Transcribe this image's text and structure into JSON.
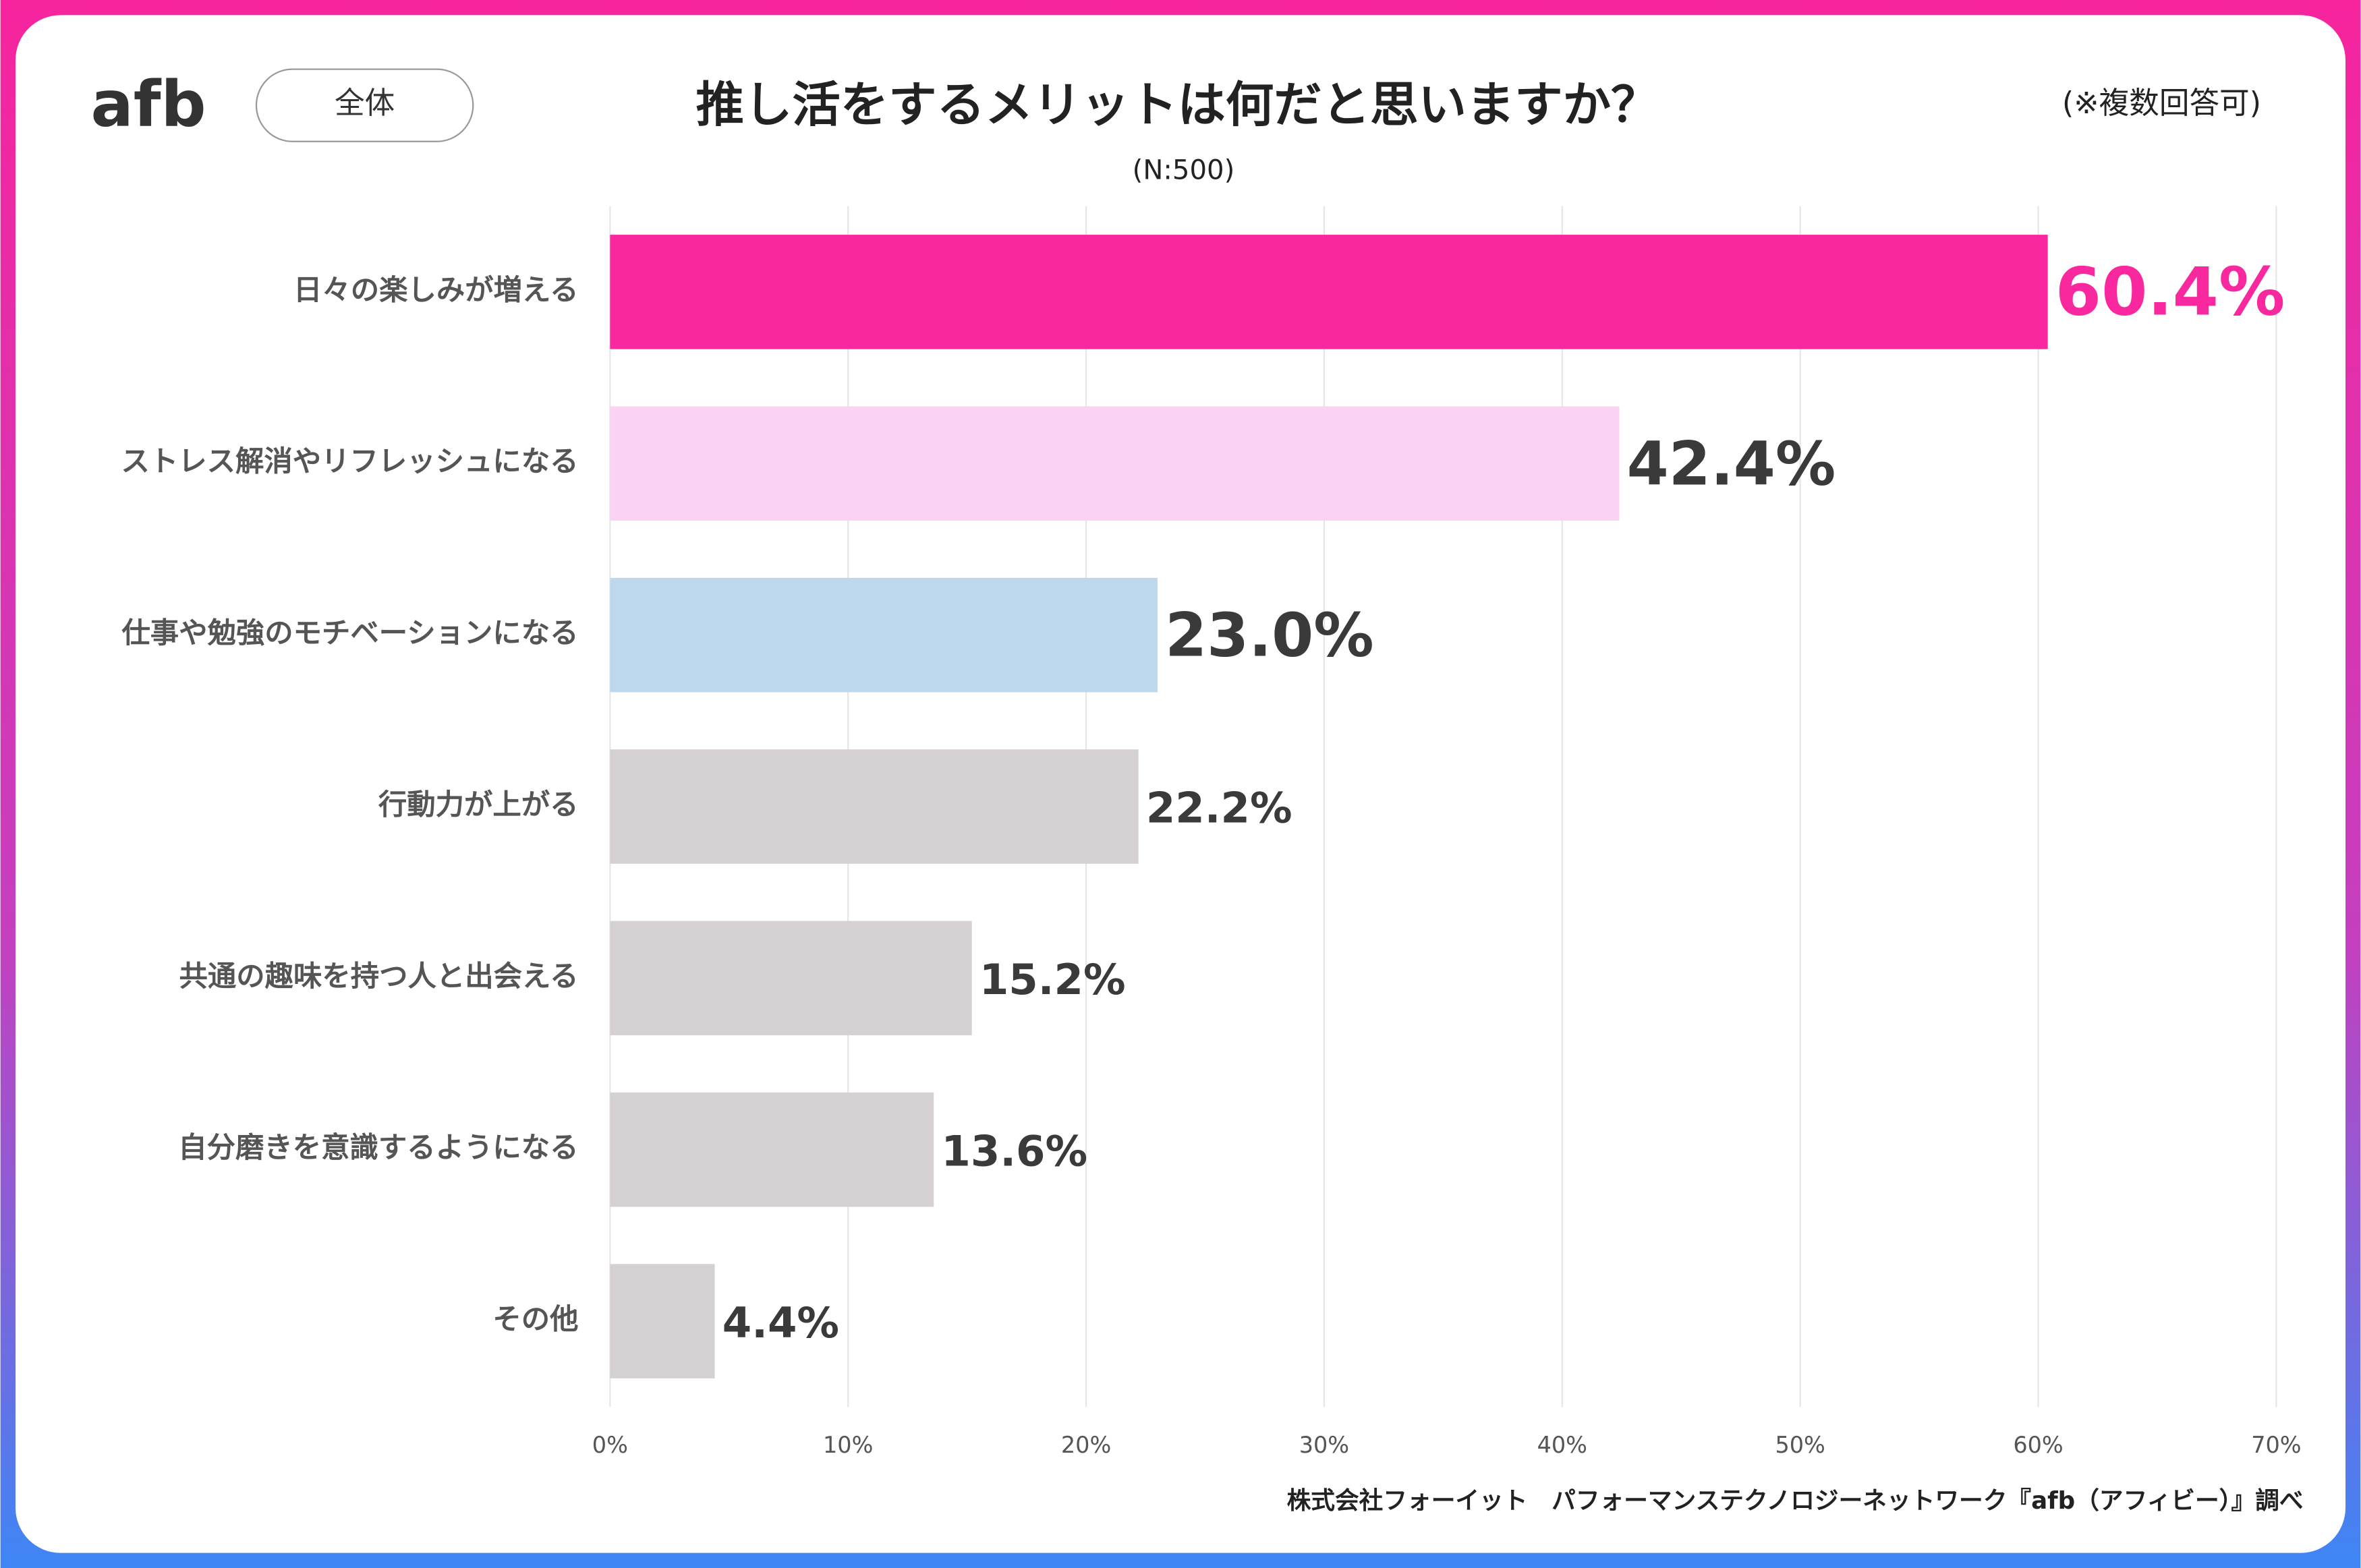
{
  "logo": "afb",
  "badge": "全体",
  "note": "(※複数回答可)",
  "source": "株式会社フォーイット　パフォーマンステクノロジーネットワーク『afb（アフィビー）』調べ",
  "chart_data": {
    "type": "bar",
    "orientation": "horizontal",
    "title": "推し活をするメリットは何だと思いますか？",
    "subtitle": "(N:500)",
    "categories": [
      "日々の楽しみが増える",
      "ストレス解消やリフレッシュになる",
      "仕事や勉強のモチベーションになる",
      "行動力が上がる",
      "共通の趣味を持つ人と出会える",
      "自分磨きを意識するようになる",
      "その他"
    ],
    "values": [
      60.4,
      42.4,
      23.0,
      22.2,
      15.2,
      13.6,
      4.4
    ],
    "value_labels": [
      "60.4%",
      "42.4%",
      "23.0%",
      "22.2%",
      "15.2%",
      "13.6%",
      "4.4%"
    ],
    "colors": [
      "#f9289f",
      "#fbd3f2",
      "#bdd7ec",
      "#d5d1d2",
      "#d5d1d2",
      "#d5d1d2",
      "#d5d1d2"
    ],
    "xlim": [
      0,
      70
    ],
    "xticks": [
      {
        "value": 0,
        "label": "0%"
      },
      {
        "value": 10,
        "label": "10%"
      },
      {
        "value": 20,
        "label": "20%"
      },
      {
        "value": 30,
        "label": "30%"
      },
      {
        "value": 40,
        "label": "40%"
      },
      {
        "value": 50,
        "label": "50%"
      },
      {
        "value": 60,
        "label": "60%"
      },
      {
        "value": 70,
        "label": "70%"
      }
    ],
    "grid": true
  }
}
